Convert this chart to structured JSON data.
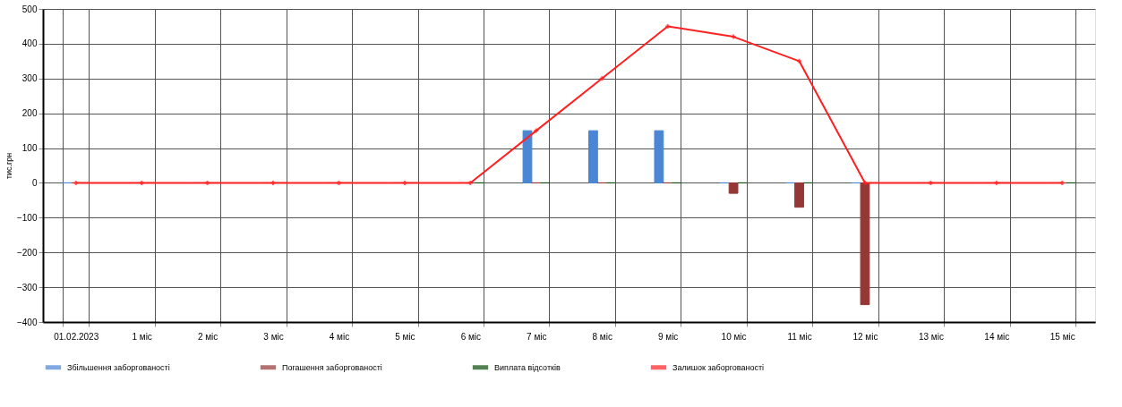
{
  "chart_data": {
    "type": "bar",
    "ylabel": "тис.грн",
    "categories": [
      "01.02.2023",
      "1 міс",
      "2 міс",
      "3 міс",
      "4 міс",
      "5 міс",
      "6 міс",
      "7 міс",
      "8 міс",
      "9 міс",
      "10 міс",
      "11 міс",
      "12 міс",
      "13 міс",
      "14 міс",
      "15 міс"
    ],
    "series": [
      {
        "name": "Збільшення заборгованості",
        "color": "#4a86d4",
        "values": [
          0,
          0,
          0,
          0,
          0,
          0,
          0,
          150,
          150,
          150,
          0,
          0,
          0,
          0,
          0,
          0
        ]
      },
      {
        "name": "Погашення заборгованості",
        "color": "#953735",
        "values": [
          0,
          0,
          0,
          0,
          0,
          0,
          0,
          0,
          0,
          0,
          -30,
          -70,
          -350,
          0,
          0,
          0
        ]
      },
      {
        "name": "Виплата відсотків",
        "color": "#0b4d0b",
        "values": [
          0,
          0,
          0,
          0,
          0,
          0,
          0,
          0,
          0,
          0,
          0,
          0,
          0,
          0,
          0,
          0
        ]
      },
      {
        "name": "Залишок заборгованості",
        "type": "line",
        "color": "#ff2020",
        "marker": "cross",
        "values": [
          0,
          0,
          0,
          0,
          0,
          0,
          0,
          150,
          300,
          450,
          420,
          350,
          0,
          0,
          0,
          0
        ]
      }
    ],
    "ylim": [
      -400,
      500
    ],
    "yticks": [
      -400,
      -300,
      -200,
      -100,
      0,
      100,
      200,
      300,
      400,
      500
    ],
    "grid": true,
    "legend": "bottom"
  }
}
